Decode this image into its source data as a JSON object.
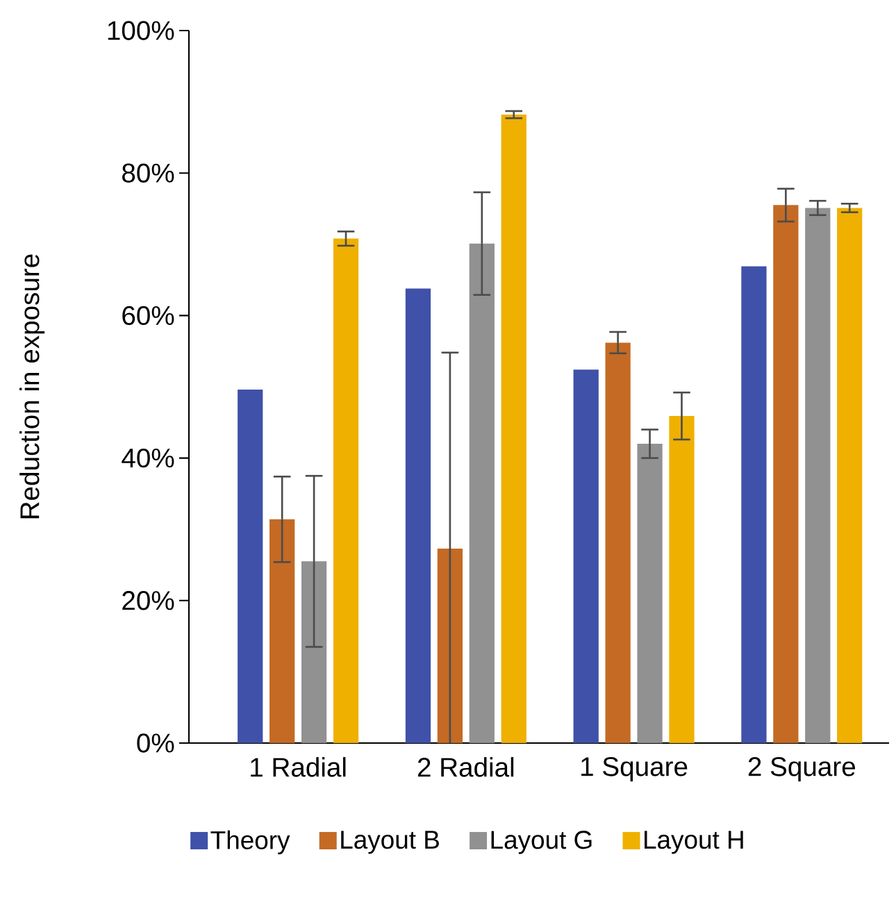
{
  "chart_data": {
    "type": "bar",
    "ylabel": "Reduction in exposure",
    "categories": [
      "1 Radial",
      "2 Radial",
      "1 Square",
      "2 Square"
    ],
    "series": [
      {
        "name": "Theory",
        "color": "#3f51a8",
        "values": [
          49.6,
          63.8,
          52.4,
          66.9
        ]
      },
      {
        "name": "Layout B",
        "color": "#c46a24",
        "values": [
          31.4,
          27.3,
          56.2,
          75.5
        ],
        "errors": [
          6,
          27.5,
          1.5,
          2.3
        ]
      },
      {
        "name": "Layout G",
        "color": "#919191",
        "values": [
          25.5,
          70.1,
          42.0,
          75.1
        ],
        "errors": [
          12,
          7.2,
          2,
          1
        ]
      },
      {
        "name": "Layout H",
        "color": "#efb000",
        "values": [
          70.8,
          88.2,
          45.9,
          75.1
        ],
        "errors": [
          1,
          0.5,
          3.3,
          0.6
        ]
      }
    ],
    "ylim": [
      0,
      100
    ],
    "yticks": [
      {
        "value": 0,
        "label": "0%"
      },
      {
        "value": 20,
        "label": "20%"
      },
      {
        "value": 40,
        "label": "40%"
      },
      {
        "value": 60,
        "label": "60%"
      },
      {
        "value": 80,
        "label": "80%"
      },
      {
        "value": 100,
        "label": "100%"
      }
    ],
    "grid": false,
    "legend": "bottom"
  }
}
